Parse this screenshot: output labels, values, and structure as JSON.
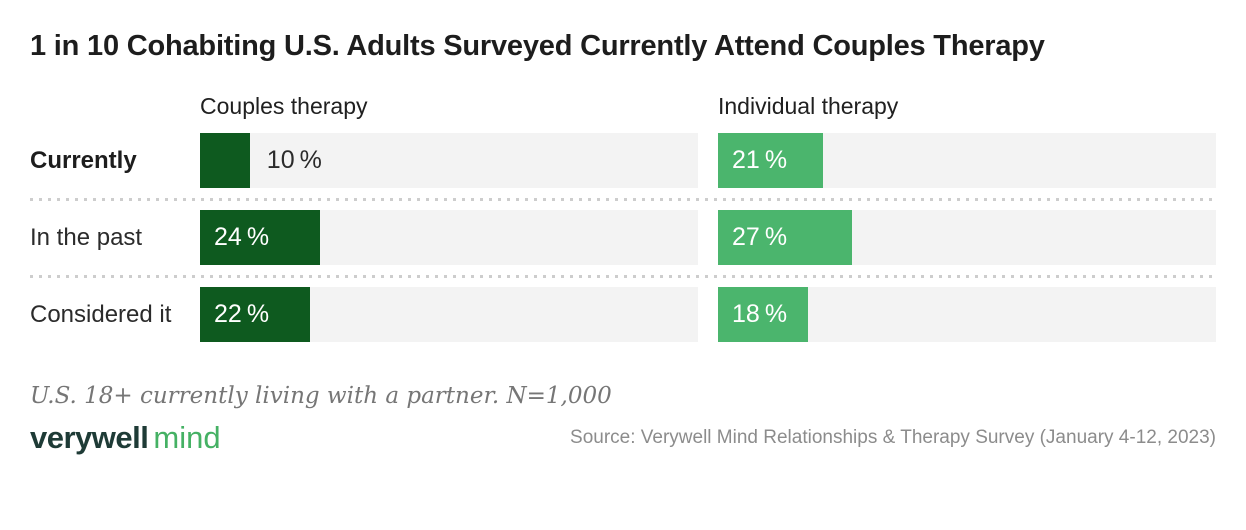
{
  "title": "1 in 10 Cohabiting U.S. Adults Surveyed Currently Attend Couples Therapy",
  "chart_data": {
    "type": "bar",
    "orientation": "horizontal",
    "categories": [
      {
        "label": "Currently",
        "emphasis": true
      },
      {
        "label": "In the past",
        "emphasis": false
      },
      {
        "label": "Considered it",
        "emphasis": false
      }
    ],
    "series": [
      {
        "name": "Couples therapy",
        "values": [
          10,
          24,
          22
        ],
        "color": "#0e5a1f"
      },
      {
        "name": "Individual therapy",
        "values": [
          21,
          27,
          18
        ],
        "color": "#4bb56d"
      }
    ],
    "value_suffix": " %",
    "xlim": [
      0,
      100
    ],
    "grid": false,
    "track_color": "#f3f3f3",
    "label_outside_below": 13
  },
  "footnote": "U.S. 18+ currently living with a partner. N=1,000",
  "footer": {
    "logo_primary": "verywell",
    "logo_secondary": "mind",
    "source": "Source: Verywell Mind Relationships & Therapy Survey (January 4-12, 2023)"
  },
  "colors": {
    "couples_bar": "#0e5a1f",
    "individual_bar": "#4bb56d",
    "bar_track": "#f3f3f3",
    "logo_dark": "#1e3b36",
    "logo_green": "#45b164"
  }
}
